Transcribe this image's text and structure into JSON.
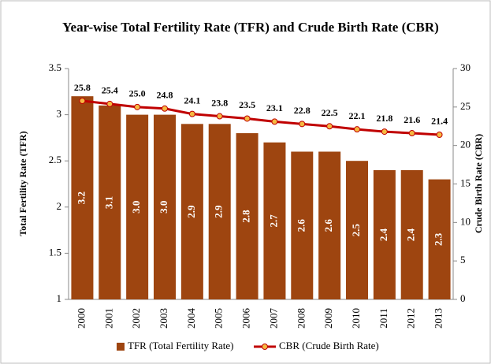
{
  "chart_data": {
    "type": "bar",
    "title": "Year-wise Total Fertility Rate (TFR) and Crude Birth Rate (CBR)",
    "y_label": "Total Fertility Rate (TFR)",
    "y2_label": "Crude Birth Rate (CBR)",
    "categories": [
      "2000",
      "2001",
      "2002",
      "2003",
      "2004",
      "2005",
      "2006",
      "2007",
      "2008",
      "2009",
      "2010",
      "2011",
      "2012",
      "2013"
    ],
    "series": [
      {
        "name": "TFR (Total Fertility Rate)",
        "type": "bar",
        "color": "#9e4510",
        "values": [
          3.2,
          3.1,
          3.0,
          3.0,
          2.9,
          2.9,
          2.8,
          2.7,
          2.6,
          2.6,
          2.5,
          2.4,
          2.4,
          2.3
        ],
        "value_labels": [
          "3.2",
          "3.1",
          "3.0",
          "3.0",
          "2.9",
          "2.9",
          "2.8",
          "2.7",
          "2.6",
          "2.6",
          "2.5",
          "2.4",
          "2.4",
          "2.3"
        ]
      },
      {
        "name": "CBR (Crude Birth Rate)",
        "type": "line",
        "axis": "y2",
        "color": "#c00000",
        "marker_color": "#f5b942",
        "values": [
          25.8,
          25.4,
          25.0,
          24.8,
          24.1,
          23.8,
          23.5,
          23.1,
          22.8,
          22.5,
          22.1,
          21.8,
          21.6,
          21.4
        ],
        "value_labels": [
          "25.8",
          "25.4",
          "25.0",
          "24.8",
          "24.1",
          "23.8",
          "23.5",
          "23.1",
          "22.8",
          "22.5",
          "22.1",
          "21.8",
          "21.6",
          "21.4"
        ]
      }
    ],
    "ylim": [
      1,
      3.5
    ],
    "yticks": [
      1,
      1.5,
      2,
      2.5,
      3,
      3.5
    ],
    "y2lim": [
      0,
      30
    ],
    "y2ticks": [
      0,
      5,
      10,
      15,
      20,
      25,
      30
    ],
    "grid": false,
    "legend": "bottom"
  }
}
